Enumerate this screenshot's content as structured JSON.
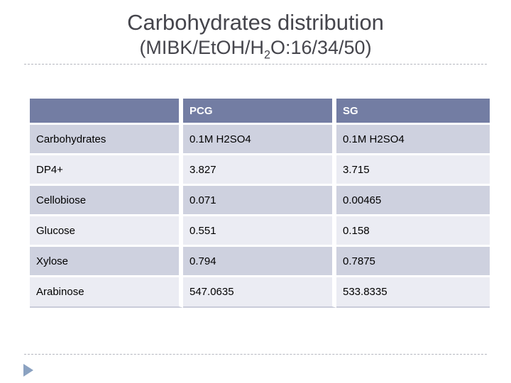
{
  "slide": {
    "title": "Carbohydrates distribution",
    "subtitle": {
      "prefix": "(MIBK/EtOH/H",
      "subscript": "2",
      "suffix": "O:16/34/50)"
    }
  },
  "table": {
    "columns": [
      "",
      "PCG",
      "SG"
    ],
    "rows": [
      {
        "label": "Carbohydrates",
        "values": [
          "0.1M H2SO4",
          "0.1M H2SO4"
        ]
      },
      {
        "label": "DP4+",
        "values": [
          "3.827",
          "3.715"
        ]
      },
      {
        "label": "Cellobiose",
        "values": [
          "0.071",
          "0.00465"
        ]
      },
      {
        "label": "Glucose",
        "values": [
          "0.551",
          "0.158"
        ]
      },
      {
        "label": "Xylose",
        "values": [
          "0.794",
          "0.7875"
        ]
      },
      {
        "label": "Arabinose",
        "values": [
          "547.0635",
          "533.8335"
        ]
      }
    ]
  },
  "icons": {
    "footer_bullet": "triangle-right-icon"
  },
  "colors": {
    "header_bg": "#737da3",
    "row_band_dark": "#ced1df",
    "row_band_light": "#ebecf3",
    "table_bottom_edge": "#c9ccd9",
    "title_text": "#45454c",
    "divider_color": "#b5b7bf",
    "accent_triangle": "#8ba2c1"
  }
}
